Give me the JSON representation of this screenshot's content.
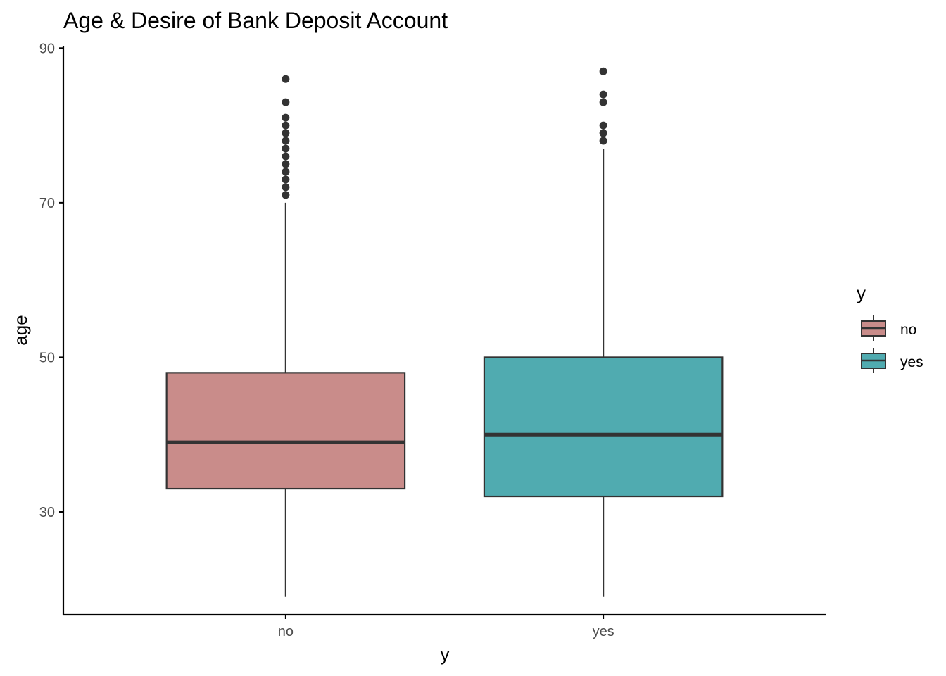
{
  "chart_data": {
    "type": "box",
    "title": "Age & Desire of Bank Deposit Account",
    "xlabel": "y",
    "ylabel": "age",
    "categories": [
      "no",
      "yes"
    ],
    "ylim": [
      16.7,
      90.3
    ],
    "yticks": [
      30,
      50,
      70,
      90
    ],
    "grid": false,
    "legend": {
      "title": "y",
      "placement": "right",
      "entries": [
        "no",
        "yes"
      ]
    },
    "colors": {
      "no": "#c98c8a",
      "yes": "#50abb0",
      "outline": "#333333",
      "outlier": "#333333"
    },
    "series": [
      {
        "category": "no",
        "whisker_low": 19,
        "q1": 33,
        "median": 39,
        "q3": 48,
        "whisker_high": 70,
        "outliers": [
          71,
          72,
          73,
          74,
          75,
          76,
          77,
          78,
          79,
          80,
          81,
          83,
          86
        ]
      },
      {
        "category": "yes",
        "whisker_low": 19,
        "q1": 32,
        "median": 40,
        "q3": 50,
        "whisker_high": 77,
        "outliers": [
          78,
          79,
          80,
          83,
          84,
          87
        ]
      }
    ]
  }
}
